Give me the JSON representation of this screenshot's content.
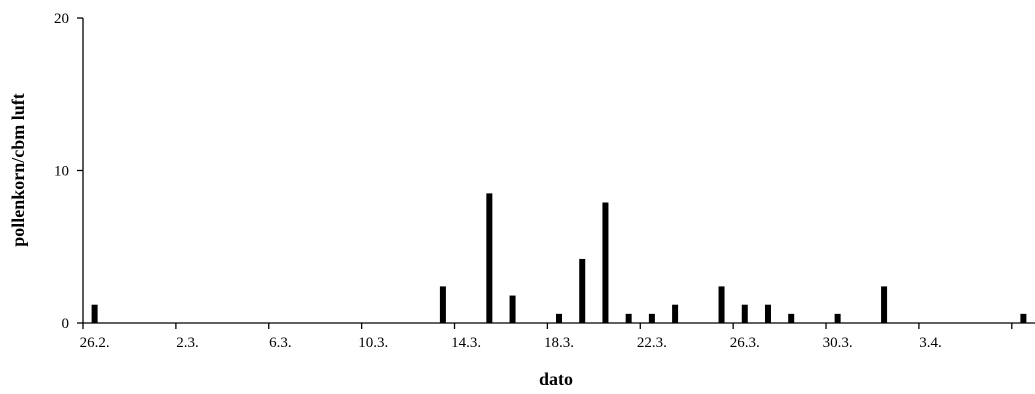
{
  "chart_data": {
    "type": "bar",
    "xlabel": "dato",
    "ylabel": "pollenkorn/cbm luft",
    "ylim": [
      0,
      20
    ],
    "y_ticks": [
      "0",
      "10",
      "20"
    ],
    "grid": false,
    "legend": "none",
    "bar_color": "#000000",
    "x_tick_labels": [
      "26.2.",
      "2.3.",
      "6.3.",
      "10.3.",
      "14.3.",
      "18.3.",
      "22.3.",
      "26.3.",
      "30.3.",
      "3.4."
    ],
    "dates": [
      "26.2.",
      "27.2.",
      "28.2.",
      "1.3.",
      "2.3.",
      "3.3.",
      "4.3.",
      "5.3.",
      "6.3.",
      "7.3.",
      "8.3.",
      "9.3.",
      "10.3.",
      "11.3.",
      "12.3.",
      "13.3.",
      "14.3.",
      "15.3.",
      "16.3.",
      "17.3.",
      "18.3.",
      "19.3.",
      "20.3.",
      "21.3.",
      "22.3.",
      "23.3.",
      "24.3.",
      "25.3.",
      "26.3.",
      "27.3.",
      "28.3.",
      "29.3.",
      "30.3.",
      "31.3.",
      "1.4.",
      "2.4.",
      "3.4.",
      "4.4.",
      "5.4.",
      "6.4.",
      "7.4."
    ],
    "values": [
      1.2,
      0,
      0,
      0,
      0,
      0,
      0,
      0,
      0,
      0,
      0,
      0,
      0,
      0,
      0,
      2.4,
      0,
      8.5,
      1.8,
      0,
      0.6,
      4.2,
      7.9,
      0.6,
      0.6,
      1.2,
      0,
      2.4,
      1.2,
      1.2,
      0.6,
      0,
      0.6,
      0,
      2.4,
      0,
      0,
      0,
      0,
      0,
      0.6
    ]
  }
}
